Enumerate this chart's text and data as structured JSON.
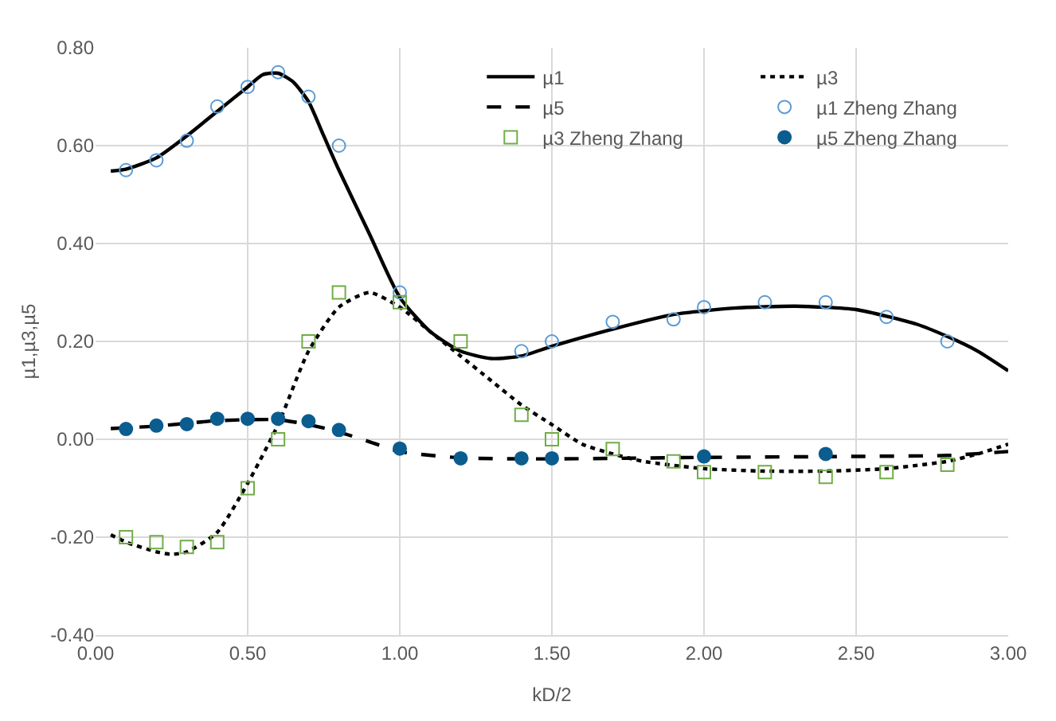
{
  "chart_data": {
    "type": "line",
    "xlabel": "kD/2",
    "ylabel": "µ1,µ3,µ5",
    "xlim": [
      0,
      3
    ],
    "ylim": [
      -0.4,
      0.8
    ],
    "xticks": [
      {
        "value": 0,
        "label": "0.00"
      },
      {
        "value": 0.5,
        "label": "0.50"
      },
      {
        "value": 1,
        "label": "1.00"
      },
      {
        "value": 1.5,
        "label": "1.50"
      },
      {
        "value": 2,
        "label": "2.00"
      },
      {
        "value": 2.5,
        "label": "2.50"
      },
      {
        "value": 3,
        "label": "3.00"
      }
    ],
    "yticks": [
      {
        "value": -0.4,
        "label": "-0.40"
      },
      {
        "value": -0.2,
        "label": "-0.20"
      },
      {
        "value": 0,
        "label": "0.00"
      },
      {
        "value": 0.2,
        "label": "0.20"
      },
      {
        "value": 0.4,
        "label": "0.40"
      },
      {
        "value": 0.6,
        "label": "0.60"
      },
      {
        "value": 0.8,
        "label": "0.80"
      }
    ],
    "grid": true,
    "legend": "top right",
    "series": [
      {
        "name": "µ1",
        "color": "#000000",
        "line_style": "solid",
        "marker": "none",
        "x": [
          0.05,
          0.1,
          0.2,
          0.3,
          0.4,
          0.5,
          0.55,
          0.6,
          0.65,
          0.7,
          0.75,
          0.8,
          0.9,
          1.0,
          1.1,
          1.2,
          1.3,
          1.4,
          1.5,
          1.7,
          1.9,
          2.1,
          2.3,
          2.5,
          2.7,
          2.8,
          2.9,
          3.0
        ],
        "values": [
          0.548,
          0.552,
          0.575,
          0.62,
          0.67,
          0.72,
          0.745,
          0.748,
          0.73,
          0.69,
          0.62,
          0.55,
          0.42,
          0.29,
          0.22,
          0.18,
          0.165,
          0.17,
          0.19,
          0.225,
          0.255,
          0.268,
          0.272,
          0.265,
          0.235,
          0.21,
          0.18,
          0.14
        ]
      },
      {
        "name": "µ3",
        "color": "#000000",
        "line_style": "dotted",
        "marker": "none",
        "x": [
          0.05,
          0.1,
          0.2,
          0.25,
          0.3,
          0.4,
          0.5,
          0.6,
          0.7,
          0.8,
          0.9,
          1.0,
          1.1,
          1.2,
          1.3,
          1.4,
          1.5,
          1.6,
          1.7,
          1.8,
          2.0,
          2.2,
          2.4,
          2.6,
          2.8,
          2.9,
          3.0
        ],
        "values": [
          -0.195,
          -0.21,
          -0.23,
          -0.235,
          -0.23,
          -0.19,
          -0.09,
          0.03,
          0.18,
          0.27,
          0.3,
          0.27,
          0.22,
          0.17,
          0.12,
          0.07,
          0.03,
          -0.01,
          -0.03,
          -0.045,
          -0.06,
          -0.065,
          -0.065,
          -0.06,
          -0.045,
          -0.03,
          -0.01
        ]
      },
      {
        "name": "µ5",
        "color": "#000000",
        "line_style": "dashed",
        "marker": "none",
        "x": [
          0.05,
          0.2,
          0.4,
          0.6,
          0.7,
          0.8,
          0.9,
          1.0,
          1.2,
          1.5,
          2.0,
          2.5,
          2.8,
          3.0
        ],
        "values": [
          0.022,
          0.027,
          0.038,
          0.04,
          0.03,
          0.015,
          -0.005,
          -0.025,
          -0.038,
          -0.04,
          -0.037,
          -0.035,
          -0.033,
          -0.025
        ]
      },
      {
        "name": "µ1 Zheng Zhang",
        "type": "scatter",
        "color": "#5b9bd5",
        "marker": "circle",
        "x": [
          0.1,
          0.2,
          0.3,
          0.4,
          0.5,
          0.6,
          0.7,
          0.8,
          1.0,
          1.4,
          1.5,
          1.7,
          1.9,
          2.0,
          2.2,
          2.4,
          2.6,
          2.8
        ],
        "values": [
          0.55,
          0.57,
          0.61,
          0.68,
          0.72,
          0.75,
          0.7,
          0.6,
          0.3,
          0.18,
          0.2,
          0.24,
          0.245,
          0.27,
          0.28,
          0.28,
          0.25,
          0.2
        ]
      },
      {
        "name": "µ3 Zheng Zhang",
        "type": "scatter",
        "color": "#70ad47",
        "marker": "square",
        "x": [
          0.1,
          0.2,
          0.3,
          0.4,
          0.5,
          0.6,
          0.7,
          0.8,
          1.0,
          1.2,
          1.4,
          1.5,
          1.7,
          1.9,
          2.0,
          2.2,
          2.4,
          2.6,
          2.8
        ],
        "values": [
          -0.2,
          -0.21,
          -0.22,
          -0.21,
          -0.1,
          0.0,
          0.2,
          0.3,
          0.28,
          0.2,
          0.05,
          0.0,
          -0.02,
          -0.045,
          -0.067,
          -0.067,
          -0.077,
          -0.067,
          -0.052
        ]
      },
      {
        "name": "µ5 Zheng Zhang",
        "type": "scatter",
        "color": "#0b5d8f",
        "marker": "circle",
        "x": [
          0.1,
          0.2,
          0.3,
          0.4,
          0.5,
          0.6,
          0.7,
          0.8,
          1.0,
          1.2,
          1.4,
          1.5,
          2.0,
          2.4
        ],
        "values": [
          0.021,
          0.028,
          0.031,
          0.042,
          0.042,
          0.042,
          0.037,
          0.019,
          -0.019,
          -0.039,
          -0.039,
          -0.039,
          -0.035,
          -0.03
        ]
      }
    ]
  }
}
